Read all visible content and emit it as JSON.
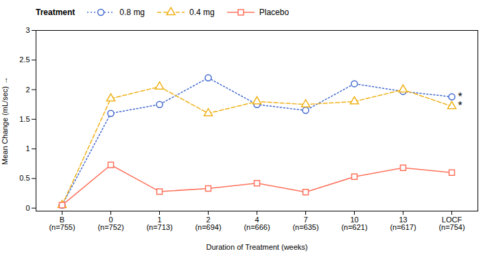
{
  "chart_data": {
    "type": "line",
    "xlabel": "Duration of Treatment (weeks)",
    "ylabel": "Mean Change (mL/sec)",
    "categories": [
      "B",
      "0",
      "1",
      "2",
      "4",
      "7",
      "10",
      "13",
      "LOCF"
    ],
    "category_sublabels": [
      "(n=755)",
      "(n=752)",
      "(n=713)",
      "(n=694)",
      "(n=666)",
      "(n=635)",
      "(n=621)",
      "(n=617)",
      "(n=754)"
    ],
    "series": [
      {
        "name": "0.8 mg",
        "values": [
          0.05,
          1.6,
          1.75,
          2.2,
          1.75,
          1.65,
          2.1,
          1.97,
          1.88
        ],
        "marker": "circle",
        "line_style": "dotted"
      },
      {
        "name": "0.4 mg",
        "values": [
          0.05,
          1.85,
          2.05,
          1.6,
          1.8,
          1.75,
          1.8,
          2.0,
          1.72
        ],
        "marker": "triangle",
        "line_style": "dashed"
      },
      {
        "name": "Placebo",
        "values": [
          0.05,
          0.73,
          0.28,
          0.33,
          0.42,
          0.27,
          0.53,
          0.68,
          0.6
        ],
        "marker": "square",
        "line_style": "solid"
      }
    ],
    "ylim": [
      -0.05,
      3.0
    ],
    "yticks": [
      0,
      0.5,
      1,
      1.5,
      2,
      2.5,
      3
    ],
    "legend_title": "Treatment",
    "legend": "top",
    "grid": false,
    "annotations": [
      {
        "text": "*",
        "x": "LOCF",
        "y": 1.88
      },
      {
        "text": "*",
        "x": "LOCF",
        "y": 1.72
      }
    ]
  }
}
